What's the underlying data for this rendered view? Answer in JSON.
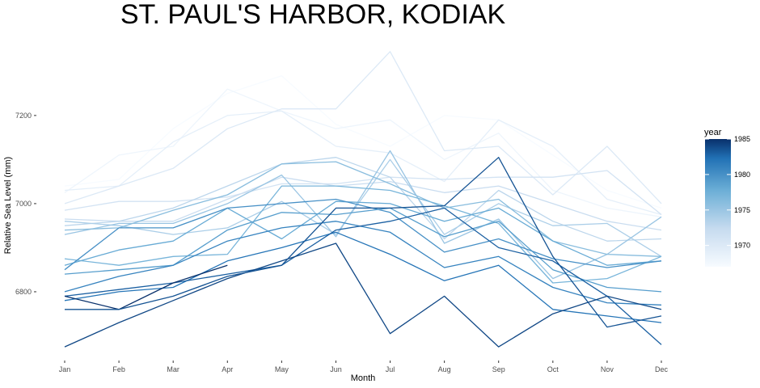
{
  "chart_data": {
    "type": "line",
    "title": "ST. PAUL'S HARBOR, KODIAK",
    "xlabel": "Month",
    "ylabel": "Relative Sea Level (mm)",
    "categories": [
      "Jan",
      "Feb",
      "Mar",
      "Apr",
      "May",
      "Jun",
      "Jul",
      "Aug",
      "Sep",
      "Oct",
      "Nov",
      "Dec"
    ],
    "ylim": [
      6655,
      7385
    ],
    "yticks": [
      6800,
      7000,
      7200
    ],
    "ytick_labels": [
      "6800",
      "7000",
      "7200"
    ],
    "grid": false,
    "legend": {
      "title": "year",
      "position": "right",
      "type": "colorbar",
      "range": [
        1967,
        1985
      ],
      "ticks": [
        1970,
        1975,
        1980,
        1985
      ],
      "tick_labels": [
        "1970",
        "1975",
        "1980",
        "1985"
      ],
      "color_low": "#f7fbff",
      "color_high": "#08306b"
    },
    "series": [
      {
        "year": 1967,
        "values": [
          7040,
          7055,
          7170,
          7250,
          7290,
          7180,
          7130,
          7200,
          7190,
          7110,
          7030,
          6990
        ]
      },
      {
        "year": 1968,
        "values": [
          7025,
          7110,
          7130,
          7260,
          7210,
          7170,
          7190,
          7100,
          7160,
          7030,
          6990,
          6970
        ]
      },
      {
        "year": 1969,
        "values": [
          7030,
          7040,
          7140,
          7200,
          7210,
          7130,
          7115,
          7050,
          7190,
          7130,
          7010,
          6975
        ]
      },
      {
        "year": 1970,
        "values": [
          7000,
          7040,
          7080,
          7170,
          7215,
          7215,
          7345,
          7120,
          7130,
          7020,
          7130,
          7000
        ]
      },
      {
        "year": 1971,
        "values": [
          6985,
          7005,
          7005,
          7015,
          7045,
          7045,
          7060,
          7055,
          7060,
          7060,
          7075,
          6975
        ]
      },
      {
        "year": 1972,
        "values": [
          6965,
          6960,
          6960,
          7010,
          7060,
          7040,
          7050,
          7025,
          7040,
          7000,
          6960,
          6940
        ]
      },
      {
        "year": 1973,
        "values": [
          6950,
          6960,
          6990,
          7040,
          7090,
          7105,
          7060,
          6920,
          7030,
          6960,
          6915,
          6920
        ]
      },
      {
        "year": 1974,
        "values": [
          6960,
          6950,
          6930,
          6945,
          7005,
          6930,
          7100,
          6930,
          7000,
          6950,
          6955,
          6880
        ]
      },
      {
        "year": 1975,
        "values": [
          6930,
          6955,
          6955,
          7000,
          7065,
          6925,
          7120,
          6910,
          6965,
          6830,
          6885,
          6970
        ]
      },
      {
        "year": 1976,
        "values": [
          6940,
          6945,
          6985,
          7020,
          7090,
          7095,
          7045,
          6990,
          7010,
          6915,
          6885,
          6880
        ]
      },
      {
        "year": 1977,
        "values": [
          6875,
          6860,
          6880,
          6885,
          7040,
          7040,
          7030,
          6995,
          6955,
          6820,
          6830,
          6880
        ]
      },
      {
        "year": 1978,
        "values": [
          6860,
          6895,
          6915,
          6990,
          6920,
          7005,
          7000,
          6960,
          6990,
          6915,
          6860,
          6870
        ]
      },
      {
        "year": 1979,
        "values": [
          6840,
          6850,
          6860,
          6940,
          6980,
          6975,
          6990,
          6925,
          6960,
          6850,
          6810,
          6800
        ]
      },
      {
        "year": 1980,
        "values": [
          6850,
          6945,
          6945,
          6990,
          7000,
          7010,
          6980,
          6890,
          6920,
          6875,
          6855,
          6870
        ]
      },
      {
        "year": 1981,
        "values": [
          6800,
          6835,
          6860,
          6915,
          6945,
          6960,
          6935,
          6855,
          6880,
          6810,
          6775,
          6770
        ]
      },
      {
        "year": 1982,
        "values": [
          6780,
          6800,
          6810,
          6870,
          6900,
          6935,
          6885,
          6825,
          6860,
          6760,
          6745,
          6730
        ]
      },
      {
        "year": 1983,
        "values": [
          6790,
          6805,
          6820,
          6840,
          6860,
          6940,
          6960,
          6990,
          6900,
          6870,
          6790,
          6680
        ]
      },
      {
        "year": 1984,
        "values": [
          6675,
          6730,
          6780,
          6830,
          6870,
          6910,
          6705,
          6790,
          6675,
          6750,
          6790,
          6760
        ]
      },
      {
        "year": 1985,
        "values": [
          6790,
          6760,
          6820,
          6860,
          null,
          null,
          null,
          null,
          null,
          null,
          null,
          null
        ]
      },
      {
        "year": 1983.5,
        "values": [
          6760,
          6760,
          6790,
          6835,
          6860,
          6990,
          6990,
          6995,
          7105,
          6880,
          6720,
          6745
        ]
      }
    ]
  }
}
